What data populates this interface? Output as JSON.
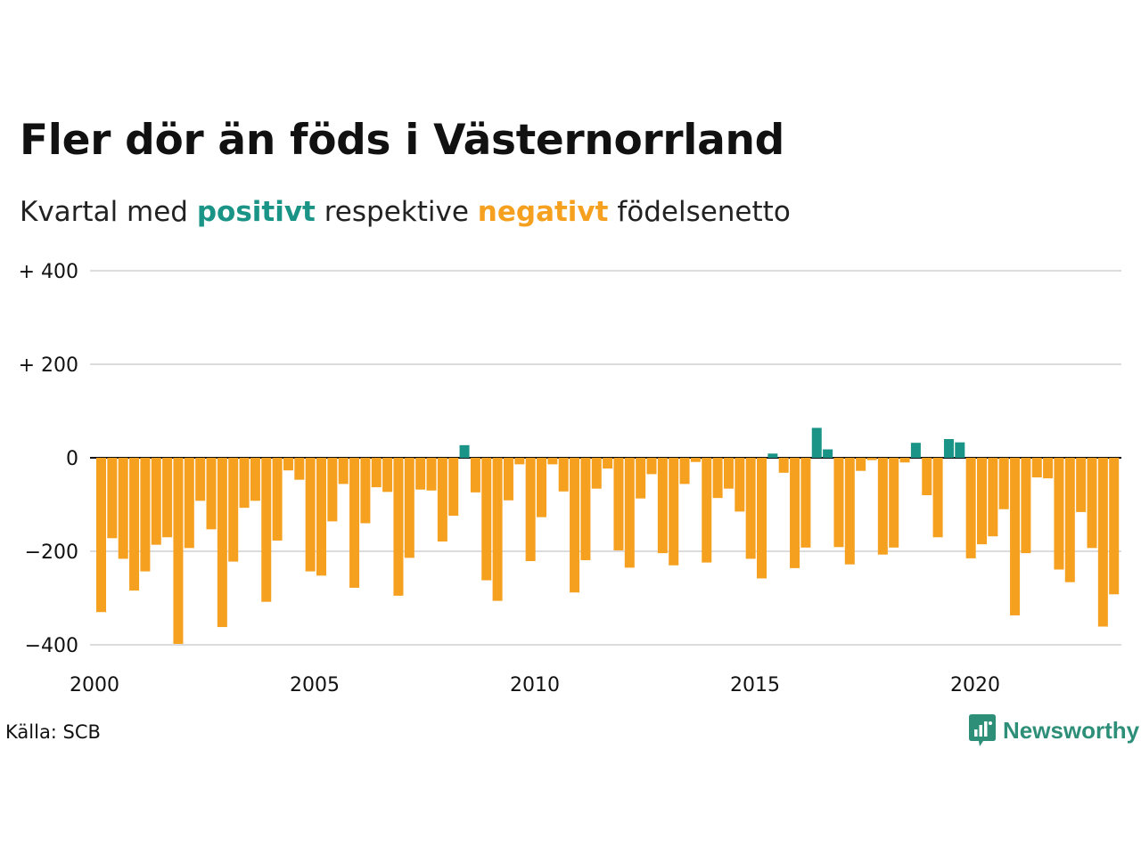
{
  "title": "Fler dör än föds i Västernorrland",
  "subtitle": {
    "prefix": "Kvartal med ",
    "positive": "positivt",
    "middle": " respektive ",
    "negative": "negativt",
    "suffix": " födelsenetto"
  },
  "source": "Källa: SCB",
  "brand": {
    "name": "Newsworthy",
    "icon": "newsworthy-logo-icon"
  },
  "colors": {
    "positive": "#1a9486",
    "negative": "#f6a01f",
    "grid": "#dcdcdc",
    "zero_line": "#111111",
    "text": "#111111",
    "brand": "#2e8f79"
  },
  "chart_data": {
    "type": "bar",
    "x_unit": "quarter",
    "x_start": "2000 Q1",
    "ylim": [
      -400,
      400
    ],
    "y_ticks": [
      -400,
      -200,
      0,
      200,
      400
    ],
    "y_tick_labels": [
      "−400",
      "−200",
      "0",
      "+ 200",
      "+ 400"
    ],
    "x_ticks": [
      2000,
      2005,
      2010,
      2015,
      2020
    ],
    "x_tick_labels": [
      "2000",
      "2005",
      "2010",
      "2015",
      "2020"
    ],
    "grid": true,
    "values": [
      -330,
      -172,
      -216,
      -284,
      -243,
      -186,
      -170,
      -398,
      -193,
      -92,
      -153,
      -362,
      -222,
      -107,
      -92,
      -308,
      -177,
      -27,
      -47,
      -243,
      -252,
      -136,
      -56,
      -278,
      -140,
      -63,
      -73,
      -295,
      -214,
      -68,
      -70,
      -179,
      -124,
      27,
      -74,
      -262,
      -306,
      -91,
      -14,
      -221,
      -127,
      -14,
      -72,
      -288,
      -219,
      -66,
      -23,
      -198,
      -235,
      -87,
      -35,
      -204,
      -230,
      -56,
      -9,
      -224,
      -86,
      -66,
      -115,
      -216,
      -258,
      9,
      -32,
      -236,
      -192,
      64,
      18,
      -191,
      -228,
      -28,
      -5,
      -207,
      -192,
      -10,
      32,
      -80,
      -170,
      40,
      33,
      -215,
      -185,
      -168,
      -110,
      -337,
      -204,
      -42,
      -44,
      -239,
      -266,
      -116,
      -193,
      -361,
      -292
    ]
  }
}
